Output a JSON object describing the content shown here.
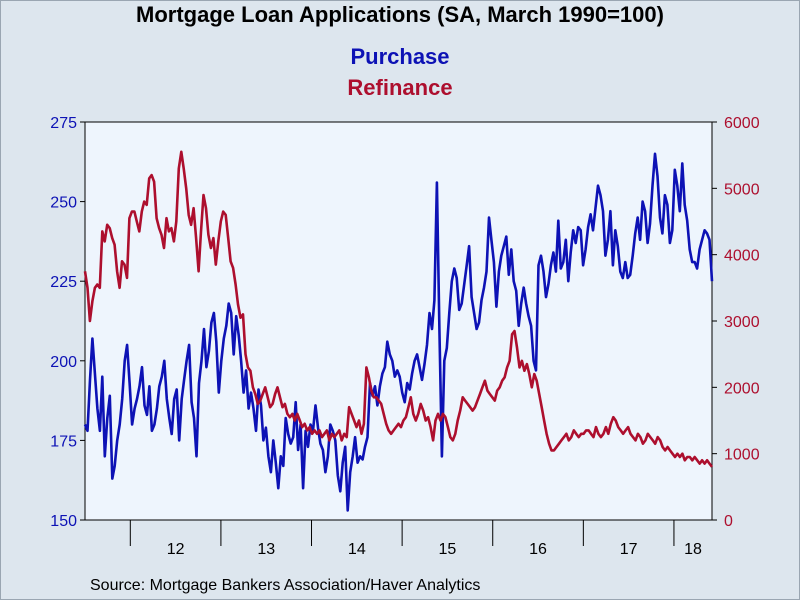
{
  "title": "Mortgage Loan Applications (SA, March 1990=100)",
  "source": "Source:  Mortgage Bankers Association/Haver Analytics",
  "colors": {
    "purchase": "#0d12b5",
    "refinance": "#ad0f2e",
    "plot_bg": "#eef5fd",
    "page_bg": "#dde6ee"
  },
  "chart_data": {
    "type": "line",
    "x_start": 2011.5,
    "x_end": 2018.42,
    "xlim": [
      2011.5,
      2018.42
    ],
    "x_tick_labels": [
      "12",
      "13",
      "14",
      "15",
      "16",
      "17",
      "18"
    ],
    "x_tick_positions": [
      2012,
      2013,
      2014,
      2015,
      2016,
      2017,
      2018
    ],
    "y_left": {
      "label": "",
      "ticks": [
        150,
        175,
        200,
        225,
        250,
        275
      ],
      "ylim": [
        150,
        275
      ]
    },
    "y_right": {
      "label": "",
      "ticks": [
        0,
        1000,
        2000,
        3000,
        4000,
        5000,
        6000
      ],
      "ylim": [
        0,
        6000
      ]
    },
    "series": [
      {
        "name": "Purchase",
        "axis": "left",
        "values": [
          180,
          178,
          194,
          207,
          196,
          185,
          178,
          195,
          170,
          182,
          189,
          163,
          167,
          175,
          180,
          188,
          200,
          205,
          193,
          180,
          185,
          188,
          192,
          198,
          186,
          183,
          192,
          178,
          180,
          185,
          192,
          195,
          200,
          188,
          182,
          177,
          188,
          191,
          175,
          188,
          194,
          200,
          205,
          187,
          182,
          170,
          193,
          200,
          210,
          198,
          203,
          212,
          215,
          206,
          190,
          200,
          207,
          211,
          218,
          215,
          202,
          214,
          208,
          200,
          190,
          197,
          185,
          190,
          185,
          178,
          191,
          186,
          175,
          179,
          170,
          165,
          175,
          168,
          160,
          170,
          167,
          182,
          177,
          174,
          176,
          187,
          172,
          180,
          160,
          178,
          173,
          180,
          178,
          186,
          179,
          174,
          172,
          165,
          170,
          180,
          178,
          175,
          164,
          159,
          168,
          173,
          153,
          165,
          170,
          176,
          168,
          170,
          169,
          173,
          176,
          193,
          189,
          192,
          186,
          192,
          196,
          198,
          206,
          202,
          200,
          195,
          197,
          195,
          190,
          187,
          193,
          191,
          196,
          200,
          202,
          198,
          194,
          199,
          205,
          215,
          210,
          219,
          256,
          210,
          170,
          200,
          204,
          215,
          225,
          229,
          226,
          216,
          218,
          224,
          230,
          236,
          220,
          215,
          210,
          212,
          219,
          223,
          228,
          245,
          238,
          231,
          217,
          228,
          233,
          236,
          239,
          227,
          235,
          225,
          222,
          211,
          218,
          223,
          218,
          214,
          211,
          200,
          197,
          230,
          233,
          228,
          220,
          224,
          230,
          234,
          228,
          244,
          229,
          231,
          238,
          225,
          234,
          241,
          237,
          242,
          241,
          230,
          235,
          242,
          246,
          241,
          248,
          255,
          252,
          247,
          233,
          238,
          247,
          230,
          241,
          236,
          228,
          226,
          231,
          226,
          227,
          233,
          240,
          245,
          238,
          250,
          247,
          237,
          243,
          255,
          265,
          258,
          245,
          240,
          252,
          249,
          237,
          241,
          260,
          255,
          247,
          262,
          249,
          244,
          235,
          231,
          231,
          229,
          235,
          238,
          241,
          240,
          238,
          225
        ]
      },
      {
        "name": "Refinance",
        "axis": "right",
        "values": [
          3750,
          3500,
          3000,
          3300,
          3500,
          3550,
          3500,
          4350,
          4200,
          4450,
          4400,
          4250,
          4150,
          3750,
          3500,
          3900,
          3850,
          3650,
          4550,
          4650,
          4650,
          4500,
          4350,
          4650,
          4800,
          4750,
          5150,
          5200,
          5100,
          4550,
          4400,
          4300,
          4100,
          4550,
          4350,
          4400,
          4200,
          4500,
          5300,
          5550,
          5300,
          5000,
          4600,
          4450,
          4700,
          4250,
          3750,
          4350,
          4900,
          4700,
          4300,
          4100,
          4250,
          3850,
          4200,
          4500,
          4650,
          4600,
          4250,
          3900,
          3800,
          3550,
          3250,
          3050,
          3100,
          2500,
          2300,
          2250,
          2000,
          1900,
          1750,
          1800,
          1900,
          2000,
          1850,
          1700,
          1750,
          1900,
          2000,
          1850,
          1700,
          1750,
          1600,
          1550,
          1600,
          1500,
          1600,
          1500,
          1400,
          1450,
          1350,
          1400,
          1300,
          1350,
          1300,
          1350,
          1250,
          1300,
          1350,
          1200,
          1300,
          1250,
          1300,
          1350,
          1200,
          1300,
          1250,
          1700,
          1600,
          1500,
          1400,
          1500,
          1300,
          1450,
          2300,
          2150,
          1950,
          1850,
          1850,
          1800,
          1750,
          1600,
          1450,
          1350,
          1300,
          1350,
          1400,
          1450,
          1400,
          1500,
          1550,
          1700,
          1850,
          1600,
          1500,
          1600,
          1750,
          1650,
          1500,
          1550,
          1400,
          1200,
          1500,
          1600,
          1500,
          1600,
          1550,
          1400,
          1250,
          1200,
          1300,
          1500,
          1650,
          1850,
          1800,
          1750,
          1700,
          1650,
          1700,
          1800,
          1900,
          2000,
          2100,
          1950,
          1900,
          1850,
          1800,
          1950,
          2000,
          2100,
          2150,
          2300,
          2400,
          2800,
          2850,
          2600,
          2300,
          2400,
          2250,
          2350,
          2200,
          2000,
          2200,
          2100,
          1900,
          1700,
          1500,
          1300,
          1150,
          1050,
          1050,
          1100,
          1150,
          1200,
          1250,
          1300,
          1200,
          1250,
          1350,
          1300,
          1250,
          1300,
          1300,
          1350,
          1350,
          1300,
          1250,
          1400,
          1300,
          1250,
          1300,
          1400,
          1300,
          1450,
          1550,
          1500,
          1400,
          1350,
          1300,
          1350,
          1400,
          1300,
          1250,
          1200,
          1300,
          1250,
          1150,
          1200,
          1300,
          1250,
          1200,
          1150,
          1250,
          1200,
          1100,
          1050,
          1100,
          1050,
          1000,
          950,
          1000,
          950,
          1000,
          900,
          950,
          950,
          900,
          950,
          900,
          850,
          900,
          850,
          900,
          850,
          800
        ]
      }
    ],
    "grid": false,
    "legend_position": "top-center"
  }
}
